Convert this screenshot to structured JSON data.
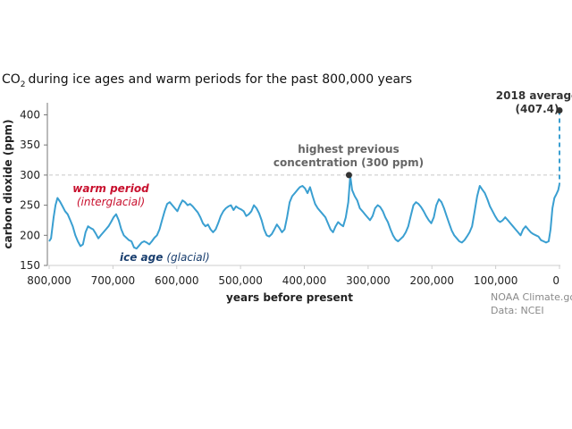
{
  "chart_data": {
    "type": "line",
    "title": "during ice ages and warm periods for the past 800,000 years",
    "title_chem": {
      "main": "CO",
      "sub": "2"
    },
    "xlabel": "years before present",
    "ylabel": "carbon dioxide (ppm)",
    "xlim": [
      800000,
      0
    ],
    "ylim": [
      150,
      420
    ],
    "x_ticks": [
      {
        "value": 800000,
        "label": "800,000"
      },
      {
        "value": 700000,
        "label": "700,000"
      },
      {
        "value": 600000,
        "label": "600,000"
      },
      {
        "value": 500000,
        "label": "500,000"
      },
      {
        "value": 400000,
        "label": "400,000"
      },
      {
        "value": 300000,
        "label": "300,000"
      },
      {
        "value": 200000,
        "label": "200,000"
      },
      {
        "value": 100000,
        "label": "100,000"
      },
      {
        "value": 0,
        "label": "0"
      }
    ],
    "y_ticks": [
      {
        "value": 150,
        "label": "150"
      },
      {
        "value": 200,
        "label": "200"
      },
      {
        "value": 250,
        "label": "250"
      },
      {
        "value": 300,
        "label": "300"
      },
      {
        "value": 350,
        "label": "350"
      },
      {
        "value": 400,
        "label": "400"
      }
    ],
    "grid": false,
    "reference_line": {
      "y": 300,
      "style": "dashed"
    },
    "series": [
      {
        "color": "#3a9fd1",
        "points": [
          [
            800000,
            190
          ],
          [
            797000,
            195
          ],
          [
            793000,
            230
          ],
          [
            790000,
            250
          ],
          [
            787000,
            262
          ],
          [
            783000,
            256
          ],
          [
            779000,
            248
          ],
          [
            775000,
            240
          ],
          [
            771000,
            235
          ],
          [
            767000,
            225
          ],
          [
            763000,
            215
          ],
          [
            759000,
            200
          ],
          [
            755000,
            190
          ],
          [
            751000,
            182
          ],
          [
            747000,
            185
          ],
          [
            743000,
            205
          ],
          [
            739000,
            215
          ],
          [
            735000,
            212
          ],
          [
            731000,
            210
          ],
          [
            727000,
            203
          ],
          [
            723000,
            195
          ],
          [
            719000,
            200
          ],
          [
            715000,
            205
          ],
          [
            711000,
            210
          ],
          [
            707000,
            215
          ],
          [
            703000,
            222
          ],
          [
            699000,
            230
          ],
          [
            695000,
            235
          ],
          [
            691000,
            225
          ],
          [
            687000,
            210
          ],
          [
            683000,
            200
          ],
          [
            679000,
            196
          ],
          [
            675000,
            192
          ],
          [
            671000,
            190
          ],
          [
            667000,
            180
          ],
          [
            663000,
            178
          ],
          [
            659000,
            183
          ],
          [
            655000,
            188
          ],
          [
            651000,
            190
          ],
          [
            647000,
            188
          ],
          [
            643000,
            185
          ],
          [
            639000,
            190
          ],
          [
            635000,
            196
          ],
          [
            631000,
            200
          ],
          [
            627000,
            210
          ],
          [
            623000,
            225
          ],
          [
            619000,
            240
          ],
          [
            615000,
            252
          ],
          [
            611000,
            255
          ],
          [
            607000,
            250
          ],
          [
            603000,
            245
          ],
          [
            599000,
            240
          ],
          [
            595000,
            250
          ],
          [
            591000,
            258
          ],
          [
            587000,
            255
          ],
          [
            583000,
            250
          ],
          [
            579000,
            252
          ],
          [
            575000,
            248
          ],
          [
            571000,
            243
          ],
          [
            567000,
            238
          ],
          [
            563000,
            230
          ],
          [
            559000,
            220
          ],
          [
            555000,
            215
          ],
          [
            551000,
            218
          ],
          [
            547000,
            210
          ],
          [
            543000,
            205
          ],
          [
            539000,
            210
          ],
          [
            535000,
            220
          ],
          [
            531000,
            232
          ],
          [
            527000,
            240
          ],
          [
            523000,
            245
          ],
          [
            519000,
            248
          ],
          [
            515000,
            250
          ],
          [
            511000,
            242
          ],
          [
            507000,
            248
          ],
          [
            503000,
            245
          ],
          [
            499000,
            243
          ],
          [
            495000,
            240
          ],
          [
            491000,
            232
          ],
          [
            487000,
            235
          ],
          [
            483000,
            240
          ],
          [
            479000,
            250
          ],
          [
            475000,
            245
          ],
          [
            471000,
            237
          ],
          [
            467000,
            225
          ],
          [
            463000,
            210
          ],
          [
            459000,
            200
          ],
          [
            455000,
            198
          ],
          [
            451000,
            202
          ],
          [
            447000,
            210
          ],
          [
            443000,
            218
          ],
          [
            439000,
            212
          ],
          [
            435000,
            205
          ],
          [
            431000,
            210
          ],
          [
            427000,
            230
          ],
          [
            423000,
            255
          ],
          [
            419000,
            265
          ],
          [
            415000,
            270
          ],
          [
            411000,
            275
          ],
          [
            407000,
            280
          ],
          [
            403000,
            282
          ],
          [
            399000,
            278
          ],
          [
            395000,
            270
          ],
          [
            391000,
            280
          ],
          [
            387000,
            265
          ],
          [
            383000,
            252
          ],
          [
            379000,
            245
          ],
          [
            375000,
            240
          ],
          [
            371000,
            235
          ],
          [
            367000,
            230
          ],
          [
            363000,
            220
          ],
          [
            359000,
            210
          ],
          [
            355000,
            205
          ],
          [
            351000,
            215
          ],
          [
            347000,
            222
          ],
          [
            343000,
            218
          ],
          [
            339000,
            215
          ],
          [
            335000,
            230
          ],
          [
            331000,
            255
          ],
          [
            328000,
            299
          ],
          [
            325000,
            275
          ],
          [
            321000,
            265
          ],
          [
            317000,
            258
          ],
          [
            313000,
            245
          ],
          [
            309000,
            240
          ],
          [
            305000,
            235
          ],
          [
            301000,
            230
          ],
          [
            297000,
            225
          ],
          [
            293000,
            232
          ],
          [
            289000,
            245
          ],
          [
            285000,
            250
          ],
          [
            281000,
            247
          ],
          [
            277000,
            240
          ],
          [
            273000,
            230
          ],
          [
            269000,
            222
          ],
          [
            265000,
            210
          ],
          [
            261000,
            200
          ],
          [
            257000,
            193
          ],
          [
            253000,
            190
          ],
          [
            249000,
            194
          ],
          [
            245000,
            198
          ],
          [
            241000,
            205
          ],
          [
            237000,
            215
          ],
          [
            233000,
            233
          ],
          [
            229000,
            250
          ],
          [
            225000,
            255
          ],
          [
            221000,
            252
          ],
          [
            217000,
            247
          ],
          [
            213000,
            240
          ],
          [
            209000,
            232
          ],
          [
            205000,
            225
          ],
          [
            201000,
            220
          ],
          [
            197000,
            230
          ],
          [
            193000,
            250
          ],
          [
            189000,
            260
          ],
          [
            185000,
            255
          ],
          [
            181000,
            245
          ],
          [
            177000,
            232
          ],
          [
            173000,
            220
          ],
          [
            169000,
            208
          ],
          [
            165000,
            200
          ],
          [
            161000,
            195
          ],
          [
            157000,
            190
          ],
          [
            153000,
            188
          ],
          [
            149000,
            192
          ],
          [
            145000,
            198
          ],
          [
            141000,
            205
          ],
          [
            137000,
            215
          ],
          [
            133000,
            240
          ],
          [
            129000,
            265
          ],
          [
            125000,
            282
          ],
          [
            121000,
            276
          ],
          [
            117000,
            270
          ],
          [
            113000,
            260
          ],
          [
            109000,
            248
          ],
          [
            105000,
            240
          ],
          [
            101000,
            232
          ],
          [
            97000,
            225
          ],
          [
            93000,
            222
          ],
          [
            89000,
            225
          ],
          [
            85000,
            230
          ],
          [
            81000,
            225
          ],
          [
            77000,
            220
          ],
          [
            73000,
            215
          ],
          [
            69000,
            210
          ],
          [
            65000,
            205
          ],
          [
            61000,
            200
          ],
          [
            57000,
            210
          ],
          [
            53000,
            215
          ],
          [
            49000,
            210
          ],
          [
            45000,
            205
          ],
          [
            41000,
            202
          ],
          [
            37000,
            200
          ],
          [
            33000,
            198
          ],
          [
            29000,
            192
          ],
          [
            25000,
            190
          ],
          [
            21000,
            188
          ],
          [
            17000,
            190
          ],
          [
            14000,
            210
          ],
          [
            11000,
            245
          ],
          [
            8000,
            262
          ],
          [
            5000,
            268
          ],
          [
            2000,
            275
          ],
          [
            0,
            285
          ]
        ]
      }
    ],
    "highlight_2018": {
      "x": 0,
      "y": 407.4,
      "label_line1": "2018 average",
      "label_line2": "(407.4)"
    },
    "highlight_peak": {
      "x": 330000,
      "y": 300,
      "label_line1": "highest previous",
      "label_line2": "concentration (300 ppm)"
    },
    "annotations": {
      "warm_line1": "warm period",
      "warm_line2": "(interglacial)",
      "ice_bold": "ice age",
      "ice_paren": "(glacial)"
    },
    "credit_line1": "NOAA Climate.gov",
    "credit_line2": "Data: NCEI",
    "colors": {
      "line": "#3a9fd1",
      "warm": "#c8102e",
      "ice": "#1a3f6f",
      "reference": "#c8c8c8",
      "dot": "#333333",
      "dashed_2018": "#3a9fd1"
    }
  }
}
